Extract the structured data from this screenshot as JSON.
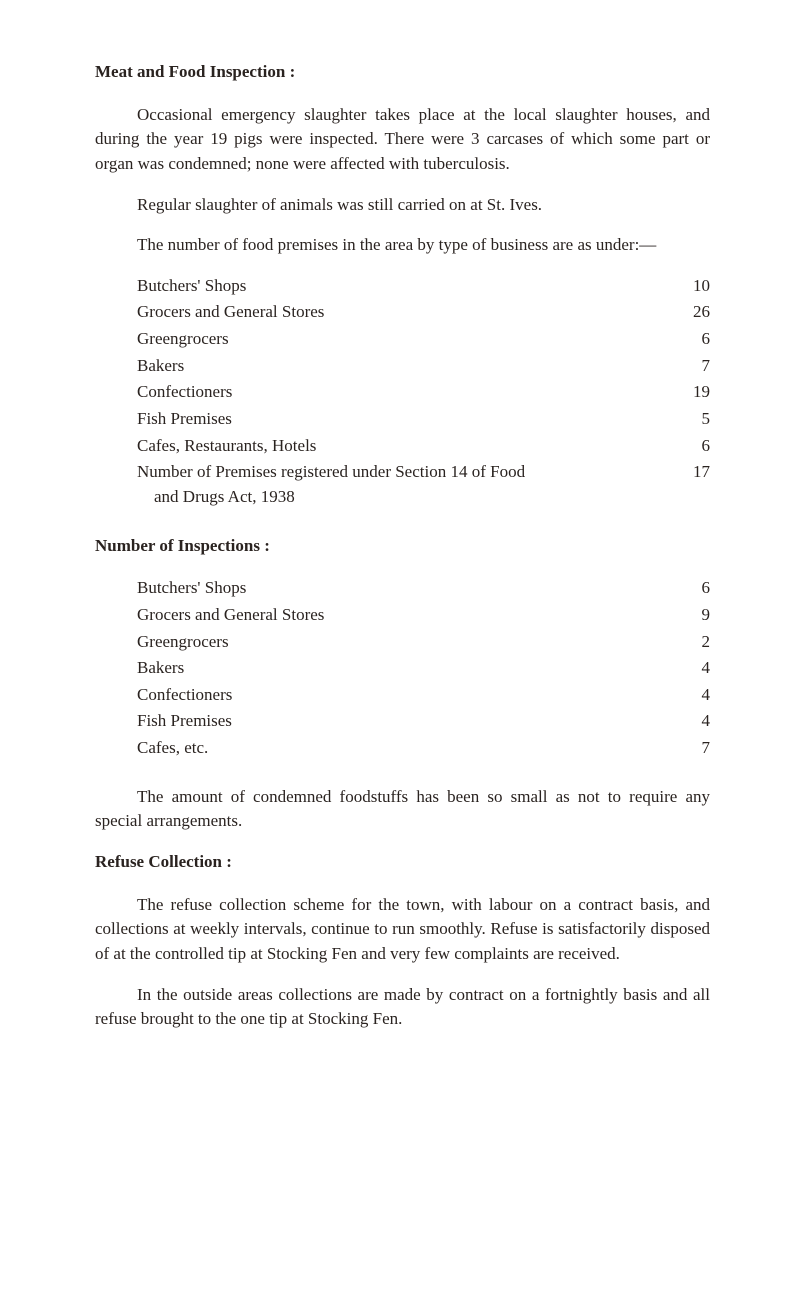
{
  "section1": {
    "heading": "Meat and Food Inspection :",
    "para1": "Occasional emergency slaughter takes place at the local slaughter houses, and during the year 19 pigs were inspected. There were 3 carcases of which some part or organ was condemned; none were affected with tuberculosis.",
    "para2": "Regular slaughter of animals was still carried on at St. Ives.",
    "para3": "The number of food premises in the area by type of business are as under:—",
    "items": [
      {
        "label": "Butchers' Shops",
        "value": "10"
      },
      {
        "label": "Grocers and General Stores",
        "value": "26"
      },
      {
        "label": "Greengrocers",
        "value": "6"
      },
      {
        "label": "Bakers",
        "value": "7"
      },
      {
        "label": "Confectioners",
        "value": "19"
      },
      {
        "label": "Fish Premises",
        "value": "5"
      },
      {
        "label": "Cafes, Restaurants, Hotels",
        "value": "6"
      },
      {
        "label": "Number of Premises registered under Section 14 of Food\n    and Drugs Act, 1938",
        "value": "17"
      }
    ]
  },
  "section2": {
    "heading": "Number of Inspections :",
    "items": [
      {
        "label": "Butchers' Shops",
        "value": "6"
      },
      {
        "label": "Grocers and General Stores",
        "value": "9"
      },
      {
        "label": "Greengrocers",
        "value": "2"
      },
      {
        "label": "Bakers",
        "value": "4"
      },
      {
        "label": "Confectioners",
        "value": "4"
      },
      {
        "label": "Fish Premises",
        "value": "4"
      },
      {
        "label": "Cafes, etc.",
        "value": "7"
      }
    ],
    "para1": "The amount of condemned foodstuffs has been so small as not to require any special arrangements."
  },
  "section3": {
    "heading": "Refuse Collection :",
    "para1": "The refuse collection scheme for the town, with labour on a contract basis, and collections at weekly intervals, continue to run smoothly. Refuse is satisfactorily disposed of at the controlled tip at Stocking Fen and very few complaints are received.",
    "para2": "In the outside areas collections are made by contract on a fortnightly basis and all refuse brought to the one tip at Stocking Fen."
  }
}
